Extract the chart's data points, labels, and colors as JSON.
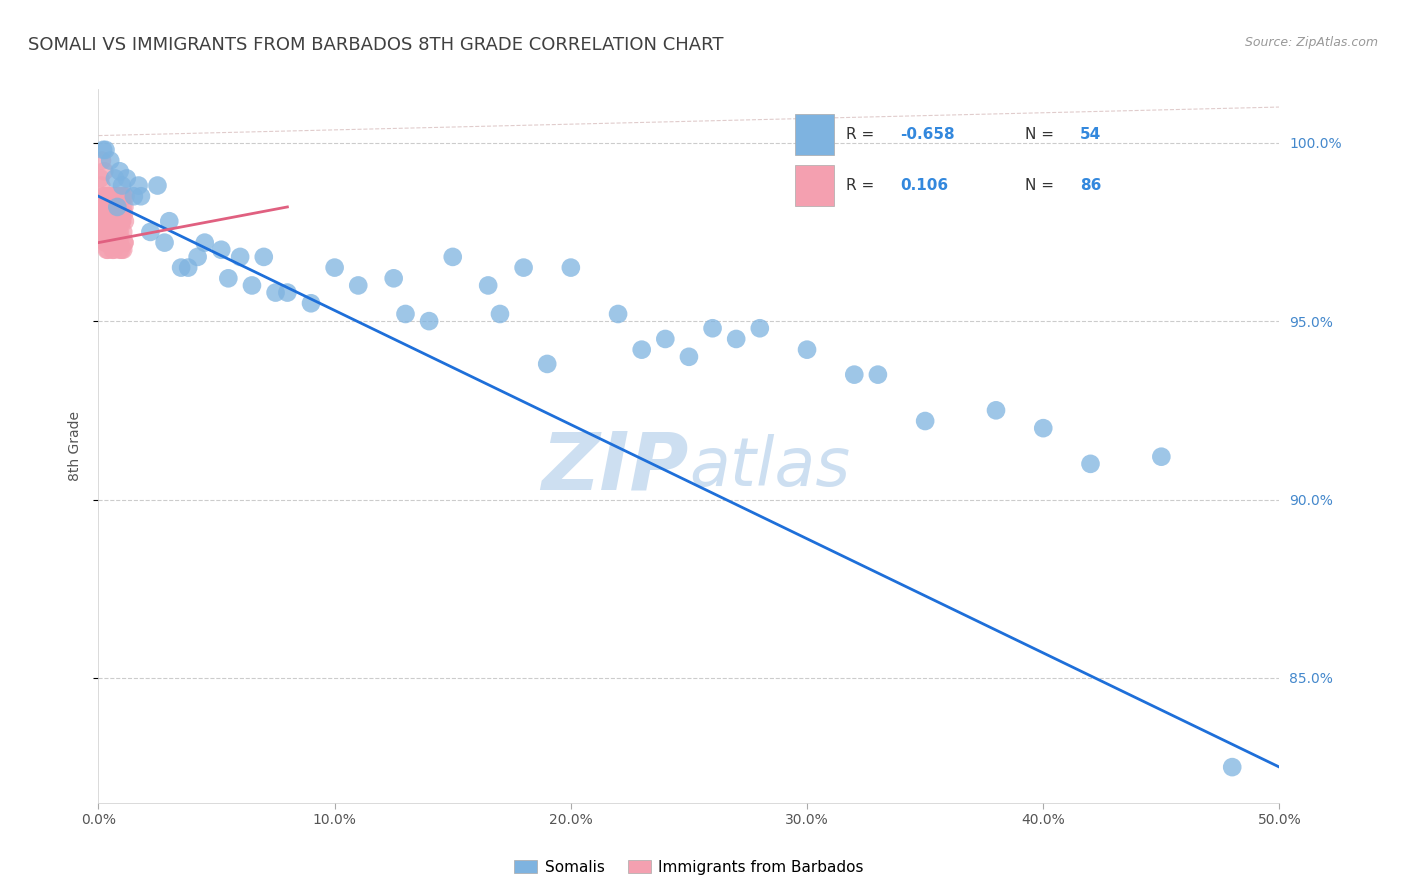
{
  "title": "SOMALI VS IMMIGRANTS FROM BARBADOS 8TH GRADE CORRELATION CHART",
  "source": "Source: ZipAtlas.com",
  "ylabel": "8th Grade",
  "x_min": 0.0,
  "x_max": 50.0,
  "y_min": 81.5,
  "y_max": 101.5,
  "somali_color": "#7EB3E0",
  "barbados_color": "#F4A0B0",
  "somali_line_color": "#1E6FD9",
  "barbados_line_color": "#E06080",
  "ref_line_color": "#DDAAAA",
  "watermark_color": "#C8DCF0",
  "background_color": "#FFFFFF",
  "grid_color": "#CCCCCC",
  "title_color": "#404040",
  "somali_x": [
    0.5,
    1.2,
    0.3,
    2.5,
    1.8,
    3.0,
    4.5,
    5.2,
    0.8,
    1.5,
    2.2,
    6.0,
    3.8,
    4.2,
    1.0,
    0.7,
    2.8,
    3.5,
    7.0,
    5.5,
    8.0,
    10.0,
    12.5,
    15.0,
    18.0,
    11.0,
    9.0,
    6.5,
    7.5,
    14.0,
    16.5,
    20.0,
    22.0,
    13.0,
    25.0,
    28.0,
    17.0,
    30.0,
    19.0,
    23.0,
    27.0,
    32.0,
    40.0,
    45.0,
    48.0,
    35.0,
    38.0,
    42.0,
    0.2,
    0.9,
    1.7,
    24.0,
    33.0,
    26.0
  ],
  "somali_y": [
    99.5,
    99.0,
    99.8,
    98.8,
    98.5,
    97.8,
    97.2,
    97.0,
    98.2,
    98.5,
    97.5,
    96.8,
    96.5,
    96.8,
    98.8,
    99.0,
    97.2,
    96.5,
    96.8,
    96.2,
    95.8,
    96.5,
    96.2,
    96.8,
    96.5,
    96.0,
    95.5,
    96.0,
    95.8,
    95.0,
    96.0,
    96.5,
    95.2,
    95.2,
    94.0,
    94.8,
    95.2,
    94.2,
    93.8,
    94.2,
    94.5,
    93.5,
    92.0,
    91.2,
    82.5,
    92.2,
    92.5,
    91.0,
    99.8,
    99.2,
    98.8,
    94.5,
    93.5,
    94.8
  ],
  "barbados_x": [
    0.05,
    0.08,
    0.1,
    0.12,
    0.15,
    0.18,
    0.2,
    0.22,
    0.25,
    0.28,
    0.3,
    0.32,
    0.35,
    0.38,
    0.4,
    0.42,
    0.45,
    0.48,
    0.5,
    0.52,
    0.55,
    0.58,
    0.6,
    0.62,
    0.65,
    0.68,
    0.7,
    0.72,
    0.75,
    0.78,
    0.8,
    0.82,
    0.85,
    0.88,
    0.9,
    0.92,
    0.95,
    0.98,
    1.0,
    1.02,
    1.05,
    1.08,
    1.1,
    1.12,
    1.15,
    0.15,
    0.25,
    0.35,
    0.45,
    0.55,
    0.65,
    0.75,
    0.85,
    0.95,
    1.05,
    0.2,
    0.3,
    0.4,
    0.5,
    0.6,
    0.7,
    0.8,
    0.9,
    1.0,
    1.1,
    0.1,
    0.2,
    0.3,
    0.4,
    0.5,
    0.6,
    0.7,
    0.8,
    0.9,
    1.0,
    1.1,
    0.15,
    0.25,
    0.35,
    0.45,
    0.55,
    0.65,
    0.75,
    0.85,
    0.95,
    1.05
  ],
  "barbados_y": [
    98.2,
    99.0,
    97.5,
    98.8,
    99.5,
    98.0,
    97.8,
    98.5,
    99.2,
    97.5,
    98.0,
    97.2,
    97.8,
    98.2,
    97.0,
    98.5,
    97.5,
    98.0,
    97.8,
    98.5,
    97.2,
    98.0,
    97.5,
    98.2,
    97.0,
    97.8,
    98.5,
    97.2,
    98.0,
    97.5,
    97.8,
    98.2,
    97.5,
    98.0,
    97.2,
    97.8,
    98.5,
    97.0,
    97.8,
    98.2,
    97.5,
    98.0,
    97.2,
    97.8,
    98.5,
    98.0,
    97.5,
    97.8,
    98.2,
    97.5,
    98.0,
    97.2,
    97.8,
    98.5,
    97.0,
    97.8,
    98.2,
    97.5,
    98.0,
    97.5,
    97.8,
    98.5,
    97.0,
    97.8,
    98.2,
    97.5,
    98.0,
    97.2,
    97.8,
    98.5,
    97.0,
    97.8,
    98.2,
    97.5,
    98.0,
    97.2,
    97.8,
    98.5,
    97.0,
    97.8,
    98.2,
    97.5,
    98.0,
    97.2,
    97.8,
    98.5
  ]
}
